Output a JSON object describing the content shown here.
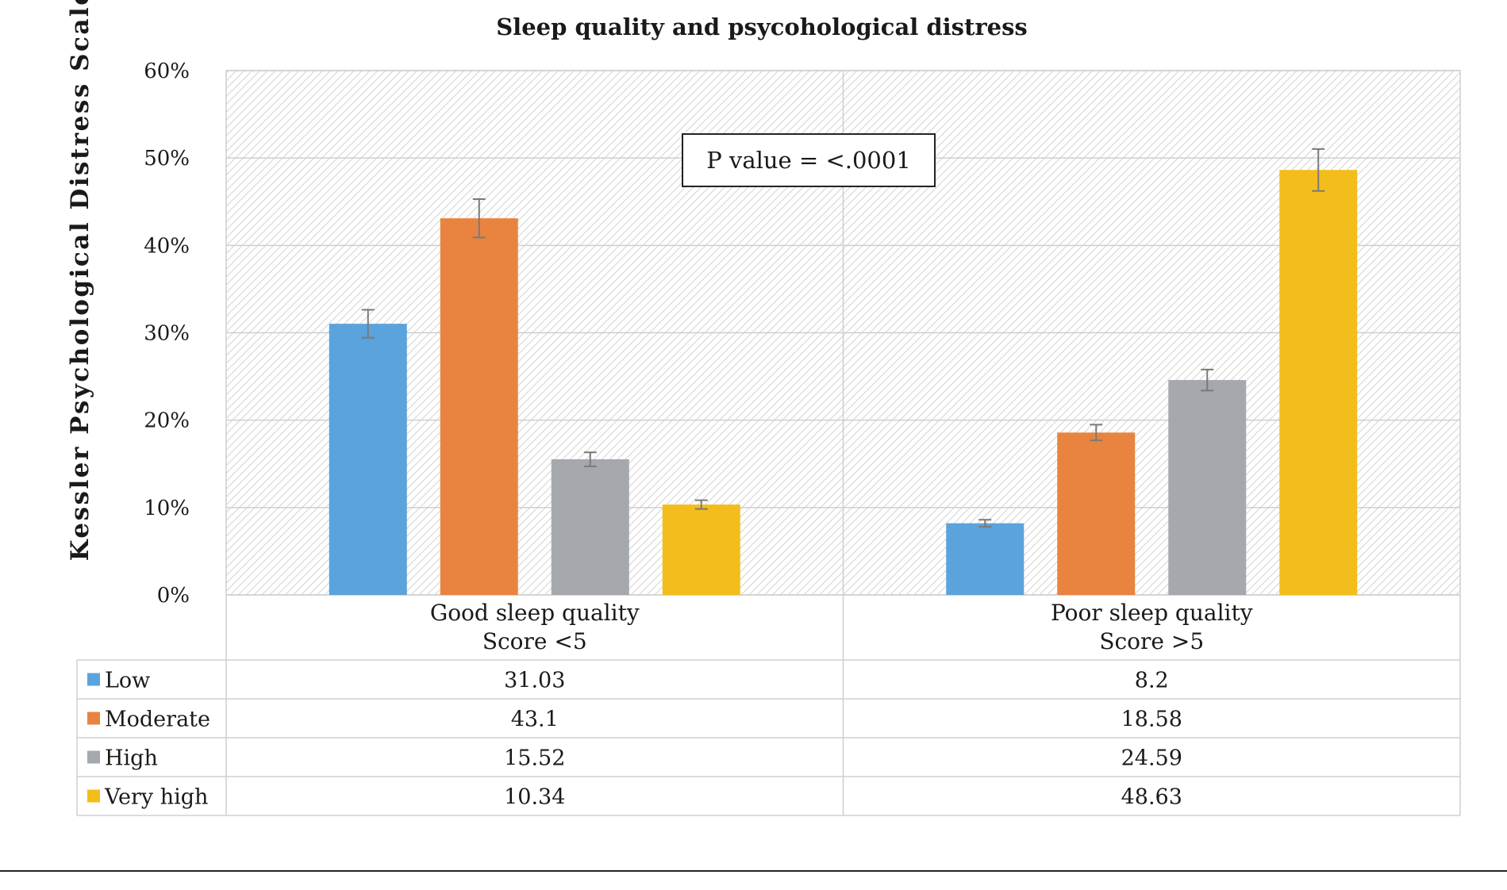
{
  "chart_data": {
    "type": "bar",
    "title": "Sleep quality and psycohological distress",
    "ylabel": "Kessler Psychological Distress Scale",
    "xlabel": "",
    "ylim": [
      0,
      60
    ],
    "yticks": [
      "0%",
      "10%",
      "20%",
      "30%",
      "40%",
      "50%",
      "60%"
    ],
    "grid": true,
    "legend_placement": "data-table",
    "categories": [
      [
        "Good sleep quality",
        "Score <5"
      ],
      [
        "Poor sleep quality",
        "Score >5"
      ]
    ],
    "series": [
      {
        "name": "Low",
        "color": "#5BA3DD",
        "values": [
          31.03,
          8.2
        ],
        "table_values": [
          "31.03",
          "8.2"
        ],
        "error": [
          1.6,
          0.4
        ]
      },
      {
        "name": "Moderate",
        "color": "#E8843F",
        "values": [
          43.1,
          18.58
        ],
        "table_values": [
          "43.1",
          "18.58"
        ],
        "error": [
          2.2,
          0.9
        ]
      },
      {
        "name": "High",
        "color": "#A5A8AC",
        "values": [
          15.52,
          24.59
        ],
        "table_values": [
          "15.52",
          "24.59"
        ],
        "error": [
          0.8,
          1.2
        ]
      },
      {
        "name": "Very high",
        "color": "#F3BD1B",
        "values": [
          10.34,
          48.63
        ],
        "table_values": [
          "10.34",
          "48.63"
        ],
        "error": [
          0.5,
          2.4
        ]
      }
    ],
    "annotation": "P value = <.0001"
  }
}
